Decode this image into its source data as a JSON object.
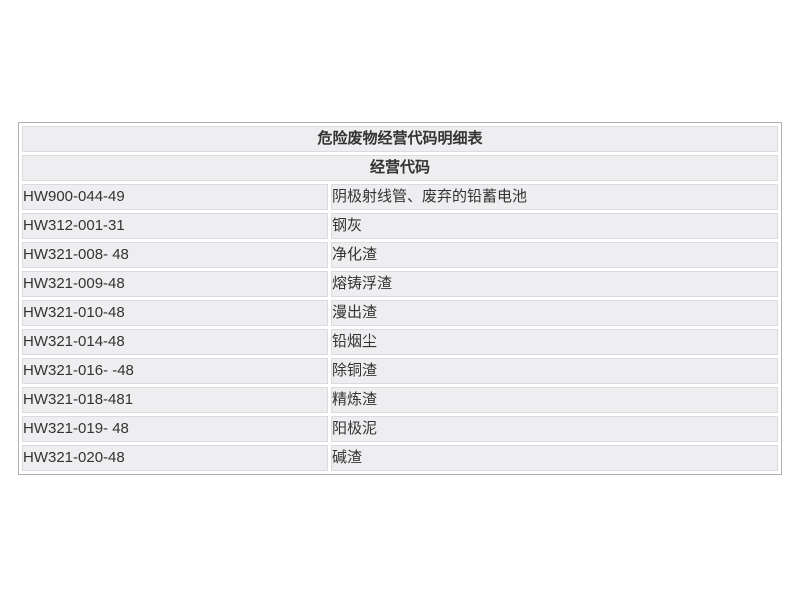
{
  "table": {
    "title": "危险废物经营代码明细表",
    "section_header": "经营代码",
    "rows": [
      {
        "code": "HW900-044-49",
        "description": "阴极射线管、废弃的铅蓄电池"
      },
      {
        "code": "HW312-001-31",
        "description": "钢灰"
      },
      {
        "code": "HW321-008- 48",
        "description": "净化渣"
      },
      {
        "code": "HW321-009-48",
        "description": "熔铸浮渣"
      },
      {
        "code": "HW321-010-48",
        "description": "漫出渣"
      },
      {
        "code": "HW321-014-48",
        "description": "铅烟尘"
      },
      {
        "code": "HW321-016- -48",
        "description": "除铜渣"
      },
      {
        "code": "HW321-018-481",
        "description": "精炼渣"
      },
      {
        "code": "HW321-019- 48",
        "description": "阳极泥"
      },
      {
        "code": "HW321-020-48",
        "description": "碱渣"
      }
    ],
    "colors": {
      "cell_background": "#eeedef",
      "cell_border": "#dbdade",
      "outer_border": "#b0b0b0",
      "text": "#333333"
    }
  }
}
